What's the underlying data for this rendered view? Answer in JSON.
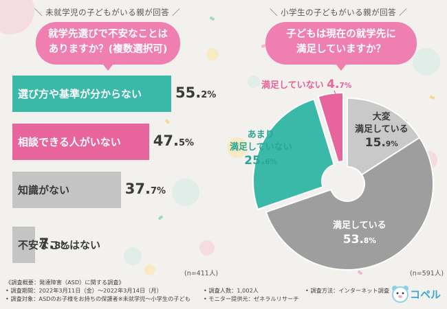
{
  "left_panel": {
    "heading": "＼ 未就学児の子どもがいる親が回答 ／",
    "question_lines": [
      "就学先選びで不安なことは",
      "ありますか？(複数選択可)"
    ],
    "n": "(n=411人)"
  },
  "right_panel": {
    "heading": "＼ 小学生の子どもがいる親が回答 ／",
    "question_lines": [
      "子どもは現在の就学先に",
      "満足していますか？"
    ],
    "n": "(n=591人)"
  },
  "colors": {
    "teal": "#3ab8a8",
    "pink": "#e8649c",
    "gray_light": "#c4c4c4",
    "gray_dark": "#9e9e9e",
    "gray_pale": "#c9c9c9"
  },
  "chart_data": [
    {
      "type": "bar",
      "orientation": "horizontal",
      "title": "就学先選びで不安なことはありますか？(複数選択可)",
      "categories": [
        "選び方や基準が分からない",
        "相談できる人がいない",
        "知識がない",
        "不安なことはない"
      ],
      "values": [
        55.2,
        47.5,
        37.7,
        7.8
      ],
      "value_labels": [
        {
          "int": "55.",
          "dec": "2",
          "unit": "%"
        },
        {
          "int": "47.",
          "dec": "5",
          "unit": "%"
        },
        {
          "int": "37.",
          "dec": "7",
          "unit": "%"
        },
        {
          "int": "7.",
          "dec": "8",
          "unit": "%"
        }
      ],
      "xlim": [
        0,
        65
      ]
    },
    {
      "type": "pie",
      "title": "子どもは現在の就学先に満足していますか？",
      "slices": [
        {
          "label_lines": [
            "大変",
            "満足している"
          ],
          "value": 15.9,
          "pct_int": "15.",
          "pct_dec": "9",
          "unit": "%",
          "color": "#c9c9c9"
        },
        {
          "label_lines": [
            "満足している"
          ],
          "value": 53.8,
          "pct_int": "53.",
          "pct_dec": "8",
          "unit": "%",
          "color": "#9e9e9e"
        },
        {
          "label_lines": [
            "あまり",
            "満足していない"
          ],
          "value": 25.6,
          "pct_int": "25.",
          "pct_dec": "6",
          "unit": "%",
          "color": "#3ab8a8"
        },
        {
          "label_lines": [
            "満足していない"
          ],
          "value": 4.7,
          "pct_int": "4.",
          "pct_dec": "7",
          "unit": "%",
          "color": "#e8649c"
        }
      ]
    }
  ],
  "footer": {
    "title": "《調査概要：発達障害（ASD）に関する調査》",
    "period": "• 調査期間：2022年3月11日（金）～2022年3月14日（月）",
    "count": "• 調査人数：1,002人",
    "method": "• 調査方法：インターネット調査",
    "target": "• 調査対象：ASDのお子様をお持ちの保護者※未就学児～小学生の子ども",
    "provider": "• モニター提供元：ゼネラルリサーチ"
  },
  "logo": {
    "text": "コペル"
  }
}
